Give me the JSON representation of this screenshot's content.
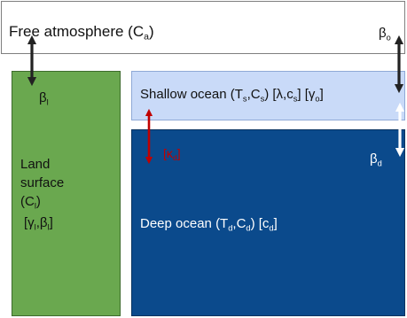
{
  "atmosphere": {
    "label": "Free atmosphere (",
    "var": "C",
    "sub": "a",
    "close": ")"
  },
  "land": {
    "line1": "Land",
    "line2": "surface",
    "var_open": "(C",
    "var_sub": "l",
    "var_close": ")",
    "param_open": "[",
    "param_gamma": "γ",
    "param_sub1": "l",
    "param_comma": ",",
    "param_beta": "β",
    "param_sub2": "l",
    "param_close": "]"
  },
  "shallow": {
    "label": "Shallow ocean (T",
    "t_sub": "s",
    "comma": ",C",
    "c_sub": "s",
    "mid": ") [λ,c",
    "c2_sub": "s",
    "mid2": "] [",
    "gamma": "γ",
    "gamma_sub": "o",
    "close": "]"
  },
  "deep": {
    "label": "Deep ocean (T",
    "t_sub": "d",
    "comma": ",C",
    "c_sub": "d",
    "mid": ") [c",
    "c2_sub": "d",
    "close": "]"
  },
  "fluxes": {
    "beta_l": "β",
    "beta_l_sub": "l",
    "beta_o": "β",
    "beta_o_sub": "o",
    "beta_d": "β",
    "beta_d_sub": "d",
    "kappa_open": "[",
    "kappa": "κ",
    "kappa_sub": "d",
    "kappa_close": "]"
  },
  "colors": {
    "atmosphere_fill": "#ffffff",
    "land_fill": "#6aa84f",
    "land_border": "#3d6b2c",
    "shallow_fill": "#c9daf8",
    "shallow_border": "#8fa9d6",
    "deep_fill": "#0b4a8c",
    "deep_border": "#07325f",
    "black_arrow": "#222222",
    "red_arrow": "#c00000",
    "white_arrow": "#ffffff"
  }
}
